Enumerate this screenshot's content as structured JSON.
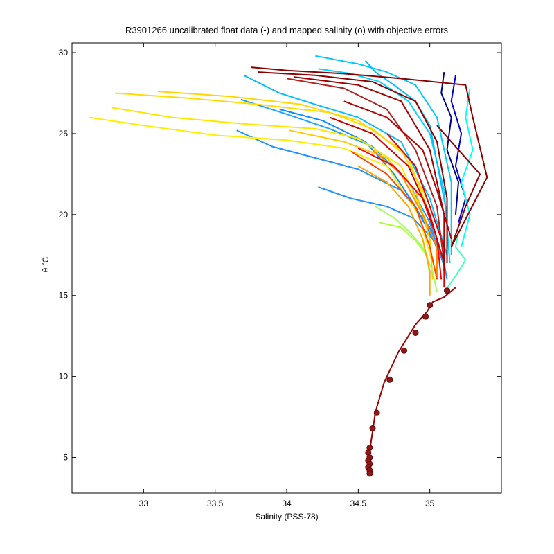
{
  "chart_data": {
    "type": "line",
    "title": "R3901266 uncalibrated float data (-) and mapped salinity (o) with objective errors",
    "xlabel": "Salinity (PSS-78)",
    "ylabel": "θ ˚C",
    "xlim": [
      32.5,
      35.5
    ],
    "ylim": [
      2.8,
      30.6
    ],
    "x_ticks": [
      "33",
      "33.5",
      "34",
      "34.5",
      "35"
    ],
    "x_tick_values": [
      33,
      33.5,
      34,
      34.5,
      35
    ],
    "y_ticks": [
      "5",
      "10",
      "15",
      "20",
      "25",
      "30"
    ],
    "y_tick_values": [
      5,
      10,
      15,
      20,
      25,
      30
    ],
    "grid": false,
    "colormap": [
      "#00008f",
      "#0000ff",
      "#0080ff",
      "#00e0ff",
      "#40ffbf",
      "#9fff60",
      "#ffff00",
      "#ffc000",
      "#ff8000",
      "#ff0000",
      "#c00000",
      "#8b0000"
    ],
    "series": [
      {
        "color": "#1e90ff",
        "points": [
          [
            34.22,
            21.7
          ],
          [
            34.45,
            21.0
          ],
          [
            34.7,
            20.5
          ],
          [
            34.88,
            19.8
          ],
          [
            35.02,
            18.5
          ],
          [
            35.1,
            17.0
          ],
          [
            35.12,
            16.0
          ]
        ]
      },
      {
        "color": "#1e90ff",
        "points": [
          [
            33.65,
            25.2
          ],
          [
            33.9,
            24.2
          ],
          [
            34.2,
            23.5
          ],
          [
            34.5,
            22.8
          ],
          [
            34.8,
            21.5
          ],
          [
            35.0,
            19.2
          ],
          [
            35.1,
            17.2
          ]
        ]
      },
      {
        "color": "#1ea0ff",
        "points": [
          [
            33.68,
            27.1
          ],
          [
            34.0,
            26.2
          ],
          [
            34.3,
            25.3
          ],
          [
            34.6,
            24.2
          ],
          [
            34.85,
            22.0
          ],
          [
            35.0,
            19.5
          ],
          [
            35.1,
            16.8
          ]
        ]
      },
      {
        "color": "#00bfff",
        "points": [
          [
            33.7,
            28.6
          ],
          [
            33.95,
            27.5
          ],
          [
            34.2,
            26.8
          ],
          [
            34.5,
            26.0
          ],
          [
            34.8,
            24.5
          ],
          [
            35.0,
            21.0
          ],
          [
            35.12,
            17.5
          ]
        ]
      },
      {
        "color": "#00c8ff",
        "points": [
          [
            34.2,
            29.8
          ],
          [
            34.5,
            29.3
          ],
          [
            34.7,
            28.8
          ],
          [
            34.9,
            28.0
          ],
          [
            35.05,
            26.0
          ],
          [
            35.15,
            22.0
          ],
          [
            35.15,
            17.5
          ]
        ]
      },
      {
        "color": "#00d4ff",
        "points": [
          [
            34.22,
            29.0
          ],
          [
            34.45,
            28.7
          ],
          [
            34.65,
            28.2
          ],
          [
            34.85,
            27.0
          ],
          [
            35.0,
            25.0
          ],
          [
            35.1,
            21.5
          ],
          [
            35.14,
            17.0
          ]
        ]
      },
      {
        "color": "#00bfff",
        "points": [
          [
            34.55,
            29.5
          ],
          [
            34.62,
            28.8
          ],
          [
            34.75,
            28.0
          ],
          [
            34.9,
            27.0
          ],
          [
            35.0,
            25.5
          ],
          [
            35.12,
            20.0
          ]
        ]
      },
      {
        "color": "#0a8cff",
        "points": [
          [
            33.95,
            26.5
          ],
          [
            34.25,
            25.8
          ],
          [
            34.55,
            24.5
          ],
          [
            34.75,
            22.5
          ],
          [
            34.9,
            20.5
          ],
          [
            35.05,
            18.0
          ]
        ]
      },
      {
        "color": "#00008f",
        "points": [
          [
            35.1,
            28.8
          ],
          [
            35.08,
            27.5
          ],
          [
            35.15,
            26.0
          ],
          [
            35.12,
            24.0
          ],
          [
            35.2,
            22.0
          ],
          [
            35.18,
            20.0
          ]
        ]
      },
      {
        "color": "#0000cd",
        "points": [
          [
            35.18,
            28.6
          ],
          [
            35.15,
            27.0
          ],
          [
            35.22,
            25.0
          ],
          [
            35.18,
            23.0
          ],
          [
            35.25,
            21.0
          ],
          [
            35.2,
            19.5
          ]
        ]
      },
      {
        "color": "#00ffff",
        "points": [
          [
            35.28,
            27.8
          ],
          [
            35.25,
            26.0
          ],
          [
            35.3,
            24.0
          ],
          [
            35.22,
            22.0
          ],
          [
            35.28,
            20.0
          ],
          [
            35.22,
            18.0
          ]
        ]
      },
      {
        "color": "#ffee00",
        "points": [
          [
            32.62,
            26.0
          ],
          [
            33.0,
            25.5
          ],
          [
            33.5,
            24.9
          ],
          [
            34.0,
            24.6
          ],
          [
            34.4,
            24.1
          ],
          [
            34.7,
            23.0
          ],
          [
            34.92,
            20.0
          ],
          [
            35.02,
            17.0
          ]
        ]
      },
      {
        "color": "#ffe600",
        "points": [
          [
            32.78,
            26.6
          ],
          [
            33.2,
            26.0
          ],
          [
            33.7,
            25.6
          ],
          [
            34.2,
            25.3
          ],
          [
            34.5,
            24.7
          ],
          [
            34.8,
            23.0
          ],
          [
            34.98,
            19.5
          ]
        ]
      },
      {
        "color": "#ffdd00",
        "points": [
          [
            32.8,
            27.5
          ],
          [
            33.3,
            27.2
          ],
          [
            33.8,
            26.8
          ],
          [
            34.3,
            26.3
          ],
          [
            34.6,
            25.3
          ],
          [
            34.85,
            23.5
          ],
          [
            35.0,
            20.0
          ]
        ]
      },
      {
        "color": "#ffd700",
        "points": [
          [
            33.1,
            27.6
          ],
          [
            33.6,
            27.3
          ],
          [
            34.1,
            26.8
          ],
          [
            34.5,
            25.8
          ],
          [
            34.8,
            24.0
          ],
          [
            34.98,
            21.0
          ]
        ]
      },
      {
        "color": "#ffc800",
        "points": [
          [
            34.02,
            25.2
          ],
          [
            34.4,
            24.5
          ],
          [
            34.7,
            23.5
          ],
          [
            34.9,
            21.5
          ],
          [
            35.0,
            18.5
          ],
          [
            35.02,
            16.0
          ]
        ]
      },
      {
        "color": "#9fff60",
        "points": [
          [
            34.62,
            20.5
          ],
          [
            34.75,
            19.8
          ],
          [
            34.85,
            19.0
          ],
          [
            34.95,
            18.0
          ],
          [
            35.02,
            16.5
          ],
          [
            35.05,
            15.2
          ]
        ]
      },
      {
        "color": "#adff2f",
        "points": [
          [
            34.65,
            19.5
          ],
          [
            34.8,
            19.2
          ],
          [
            34.9,
            18.4
          ],
          [
            34.98,
            17.5
          ],
          [
            35.0,
            16.2
          ]
        ]
      },
      {
        "color": "#40ffbf",
        "points": [
          [
            35.2,
            19.0
          ],
          [
            35.18,
            18.0
          ],
          [
            35.25,
            17.2
          ],
          [
            35.18,
            16.2
          ],
          [
            35.1,
            15.2
          ]
        ]
      },
      {
        "color": "#ffa500",
        "points": [
          [
            34.5,
            23.0
          ],
          [
            34.7,
            22.0
          ],
          [
            34.85,
            20.5
          ],
          [
            34.95,
            18.5
          ],
          [
            35.0,
            16.5
          ],
          [
            35.0,
            15.0
          ]
        ]
      },
      {
        "color": "#ff8c00",
        "points": [
          [
            34.6,
            24.0
          ],
          [
            34.8,
            22.5
          ],
          [
            34.95,
            20.0
          ],
          [
            35.05,
            18.0
          ],
          [
            35.05,
            16.0
          ]
        ]
      },
      {
        "color": "#ff4500",
        "points": [
          [
            34.45,
            23.9
          ],
          [
            34.7,
            22.5
          ],
          [
            34.9,
            20.5
          ],
          [
            35.0,
            18.0
          ],
          [
            35.05,
            16.0
          ]
        ]
      },
      {
        "color": "#ff0000",
        "points": [
          [
            34.5,
            24.1
          ],
          [
            34.75,
            23.0
          ],
          [
            34.95,
            21.0
          ],
          [
            35.05,
            18.5
          ],
          [
            35.08,
            16.0
          ]
        ]
      },
      {
        "color": "#e00000",
        "points": [
          [
            34.7,
            25.0
          ],
          [
            34.9,
            23.0
          ],
          [
            35.0,
            20.5
          ],
          [
            35.1,
            18.0
          ],
          [
            35.1,
            15.5
          ]
        ]
      },
      {
        "color": "#cc0000",
        "points": [
          [
            34.3,
            26.0
          ],
          [
            34.6,
            25.0
          ],
          [
            34.85,
            23.0
          ],
          [
            35.0,
            20.0
          ],
          [
            35.1,
            17.0
          ]
        ]
      },
      {
        "color": "#b22222",
        "points": [
          [
            34.0,
            28.4
          ],
          [
            34.4,
            27.8
          ],
          [
            34.7,
            26.5
          ],
          [
            34.9,
            24.0
          ],
          [
            35.05,
            20.5
          ],
          [
            35.1,
            17.0
          ]
        ]
      },
      {
        "color": "#8b0000",
        "points": [
          [
            33.75,
            29.1
          ],
          [
            34.0,
            28.9
          ],
          [
            34.4,
            28.7
          ],
          [
            34.8,
            28.4
          ],
          [
            35.25,
            28.0
          ],
          [
            35.3,
            26.0
          ],
          [
            35.4,
            22.3
          ],
          [
            35.15,
            18.0
          ]
        ]
      },
      {
        "color": "#8b0000",
        "points": [
          [
            33.8,
            28.8
          ],
          [
            34.2,
            28.6
          ],
          [
            34.6,
            28.2
          ],
          [
            34.9,
            27.0
          ],
          [
            35.05,
            24.5
          ],
          [
            35.12,
            21.0
          ],
          [
            35.12,
            17.0
          ]
        ]
      },
      {
        "color": "#a00000",
        "points": [
          [
            34.05,
            28.5
          ],
          [
            34.5,
            28.0
          ],
          [
            34.8,
            27.0
          ],
          [
            35.0,
            24.0
          ],
          [
            35.1,
            20.0
          ],
          [
            35.1,
            16.5
          ]
        ]
      },
      {
        "color": "#b00000",
        "points": [
          [
            34.4,
            27.0
          ],
          [
            34.7,
            26.0
          ],
          [
            34.95,
            24.0
          ],
          [
            35.05,
            21.5
          ],
          [
            35.15,
            18.5
          ]
        ]
      },
      {
        "color": "#8b0000",
        "points": [
          [
            35.05,
            25.5
          ],
          [
            35.2,
            24.0
          ],
          [
            35.35,
            22.5
          ],
          [
            35.25,
            20.5
          ],
          [
            35.15,
            18.0
          ]
        ]
      },
      {
        "color": "#9b0000",
        "points": [
          [
            35.18,
            15.5
          ],
          [
            35.1,
            14.9
          ],
          [
            35.02,
            14.6
          ],
          [
            34.98,
            14.0
          ],
          [
            34.9,
            13.2
          ],
          [
            34.78,
            11.5
          ],
          [
            34.68,
            9.6
          ],
          [
            34.62,
            7.8
          ],
          [
            34.6,
            6.6
          ],
          [
            34.58,
            5.4
          ],
          [
            34.58,
            4.2
          ]
        ]
      }
    ],
    "mapped_points": [
      [
        35.12,
        15.3
      ],
      [
        35.0,
        14.4
      ],
      [
        34.97,
        13.7
      ],
      [
        34.9,
        12.7
      ],
      [
        34.82,
        11.6
      ],
      [
        34.72,
        9.8
      ],
      [
        34.63,
        7.75
      ],
      [
        34.6,
        6.8
      ],
      [
        34.58,
        5.6
      ],
      [
        34.57,
        5.3
      ],
      [
        34.58,
        5.0
      ],
      [
        34.57,
        4.8
      ],
      [
        34.58,
        4.6
      ],
      [
        34.57,
        4.4
      ],
      [
        34.58,
        4.2
      ],
      [
        34.58,
        4.0
      ]
    ]
  }
}
